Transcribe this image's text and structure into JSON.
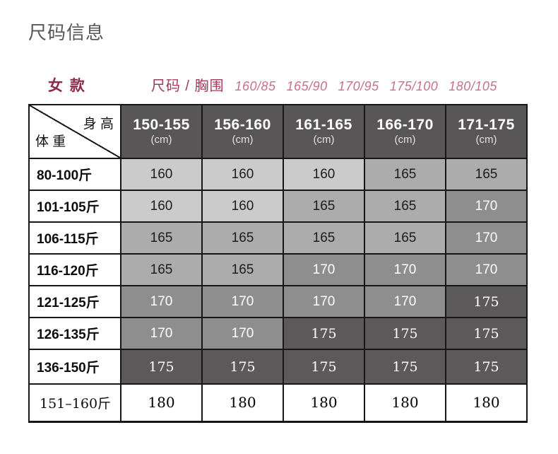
{
  "title": "尺码信息",
  "subheader": {
    "gender_label": "女 款",
    "size_bust_label": "尺码 / 胸围",
    "size_pairs": [
      "160/85",
      "165/90",
      "170/95",
      "175/100",
      "180/105"
    ]
  },
  "chart_data": {
    "type": "table",
    "title": "尺码信息",
    "corner": {
      "top_right": "身 高",
      "bottom_left": "体 重"
    },
    "column_axis": "身高 (cm)",
    "row_axis": "体重 (斤)",
    "columns": [
      {
        "range": "150-155",
        "unit": "(cm)"
      },
      {
        "range": "156-160",
        "unit": "(cm)"
      },
      {
        "range": "161-165",
        "unit": "(cm)"
      },
      {
        "range": "166-170",
        "unit": "(cm)"
      },
      {
        "range": "171-175",
        "unit": "(cm)"
      }
    ],
    "rows": [
      {
        "label": "80-100斤",
        "values": [
          "160",
          "160",
          "160",
          "165",
          "165"
        ]
      },
      {
        "label": "101-105斤",
        "values": [
          "160",
          "160",
          "165",
          "165",
          "170"
        ]
      },
      {
        "label": "106-115斤",
        "values": [
          "165",
          "165",
          "165",
          "165",
          "170"
        ]
      },
      {
        "label": "116-120斤",
        "values": [
          "165",
          "165",
          "170",
          "170",
          "170"
        ]
      },
      {
        "label": "121-125斤",
        "values": [
          "170",
          "170",
          "170",
          "170",
          "175"
        ]
      },
      {
        "label": "126-135斤",
        "values": [
          "170",
          "170",
          "175",
          "175",
          "175"
        ]
      },
      {
        "label": "136-150斤",
        "values": [
          "175",
          "175",
          "175",
          "175",
          "175"
        ]
      },
      {
        "label": "151–160斤",
        "values": [
          "180",
          "180",
          "180",
          "180",
          "180"
        ]
      }
    ]
  },
  "colors": {
    "accent_maroon": "#8e2a4c",
    "light_maroon": "#c4718c",
    "header_bg": "#585656",
    "cell_160": "#cccbcb",
    "cell_165": "#adacac",
    "cell_170": "#8f8e8e",
    "cell_175": "#5b5959",
    "cell_180": "#ffffff",
    "border": "#161616",
    "title_gray": "#56565a"
  }
}
